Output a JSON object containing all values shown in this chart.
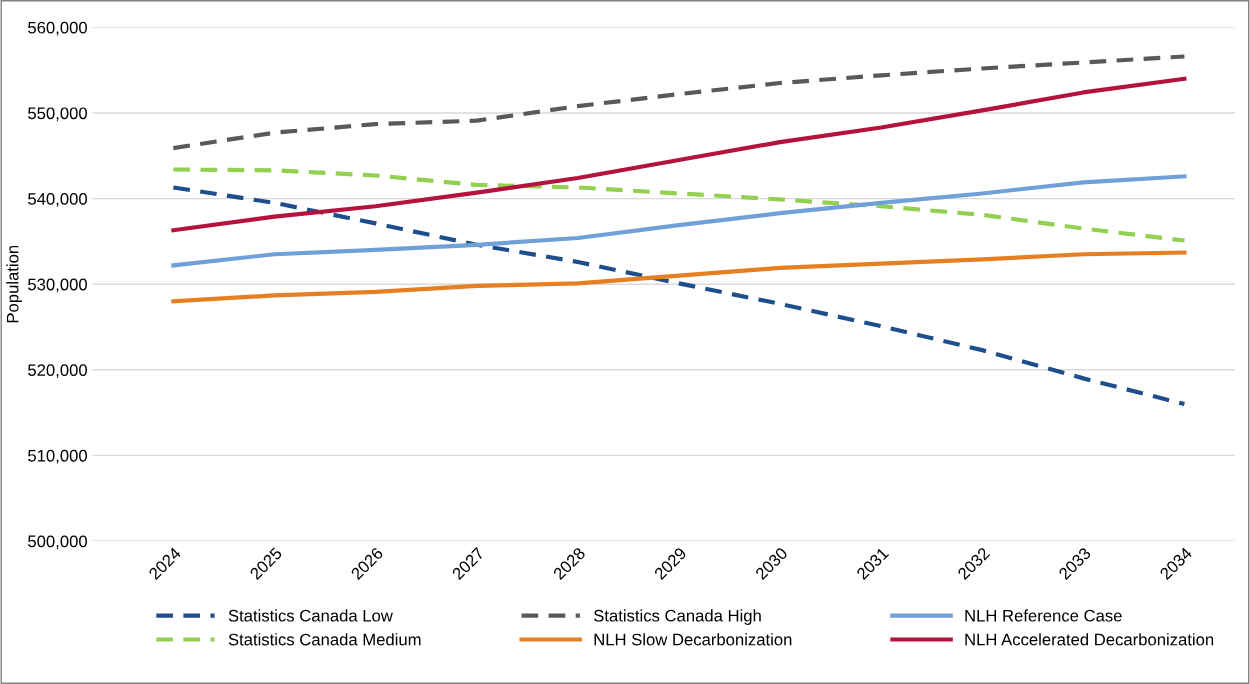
{
  "chart_data": {
    "type": "line",
    "ylabel": "Population",
    "categories": [
      "2024",
      "2025",
      "2026",
      "2027",
      "2028",
      "2029",
      "2030",
      "2031",
      "2032",
      "2033",
      "2034"
    ],
    "series": [
      {
        "name": "Statistics Canada Low",
        "color": "#1f4e8c",
        "line_style": "dashed",
        "values": [
          541300,
          539500,
          537100,
          534600,
          532600,
          530100,
          527700,
          525100,
          522300,
          519000,
          516000
        ]
      },
      {
        "name": "Statistics Canada Medium",
        "color": "#92d050",
        "line_style": "dashed",
        "values": [
          543400,
          543300,
          542700,
          541600,
          541300,
          540600,
          539900,
          539100,
          538100,
          536500,
          535100
        ]
      },
      {
        "name": "Statistics Canada High",
        "color": "#595959",
        "line_style": "dashed",
        "values": [
          545900,
          547700,
          548700,
          549100,
          550800,
          552200,
          553500,
          554400,
          555200,
          555900,
          556600
        ]
      },
      {
        "name": "NLH Slow Decarbonization",
        "color": "#e67e22",
        "line_style": "solid",
        "values": [
          528000,
          528700,
          529100,
          529800,
          530100,
          531000,
          531900,
          532400,
          532900,
          533500,
          533700
        ]
      },
      {
        "name": "NLH Reference Case",
        "color": "#6fa0d8",
        "line_style": "solid",
        "values": [
          532200,
          533500,
          534000,
          534600,
          535400,
          536900,
          538300,
          539500,
          540600,
          541900,
          542600
        ]
      },
      {
        "name": "NLH Accelerated Decarbonization",
        "color": "#b5123e",
        "line_style": "solid",
        "values": [
          536300,
          537900,
          539100,
          540700,
          542400,
          544500,
          546600,
          548300,
          550300,
          552400,
          554000
        ]
      }
    ],
    "ylim": [
      500000,
      560000
    ],
    "yticks": [
      {
        "value": 500000,
        "label": "500,000"
      },
      {
        "value": 510000,
        "label": "510,000"
      },
      {
        "value": 520000,
        "label": "520,000"
      },
      {
        "value": 530000,
        "label": "530,000"
      },
      {
        "value": 540000,
        "label": "540,000"
      },
      {
        "value": 550000,
        "label": "550,000"
      },
      {
        "value": 560000,
        "label": "560,000"
      }
    ],
    "grid": "y",
    "legend": "bottom",
    "marker": "none"
  }
}
